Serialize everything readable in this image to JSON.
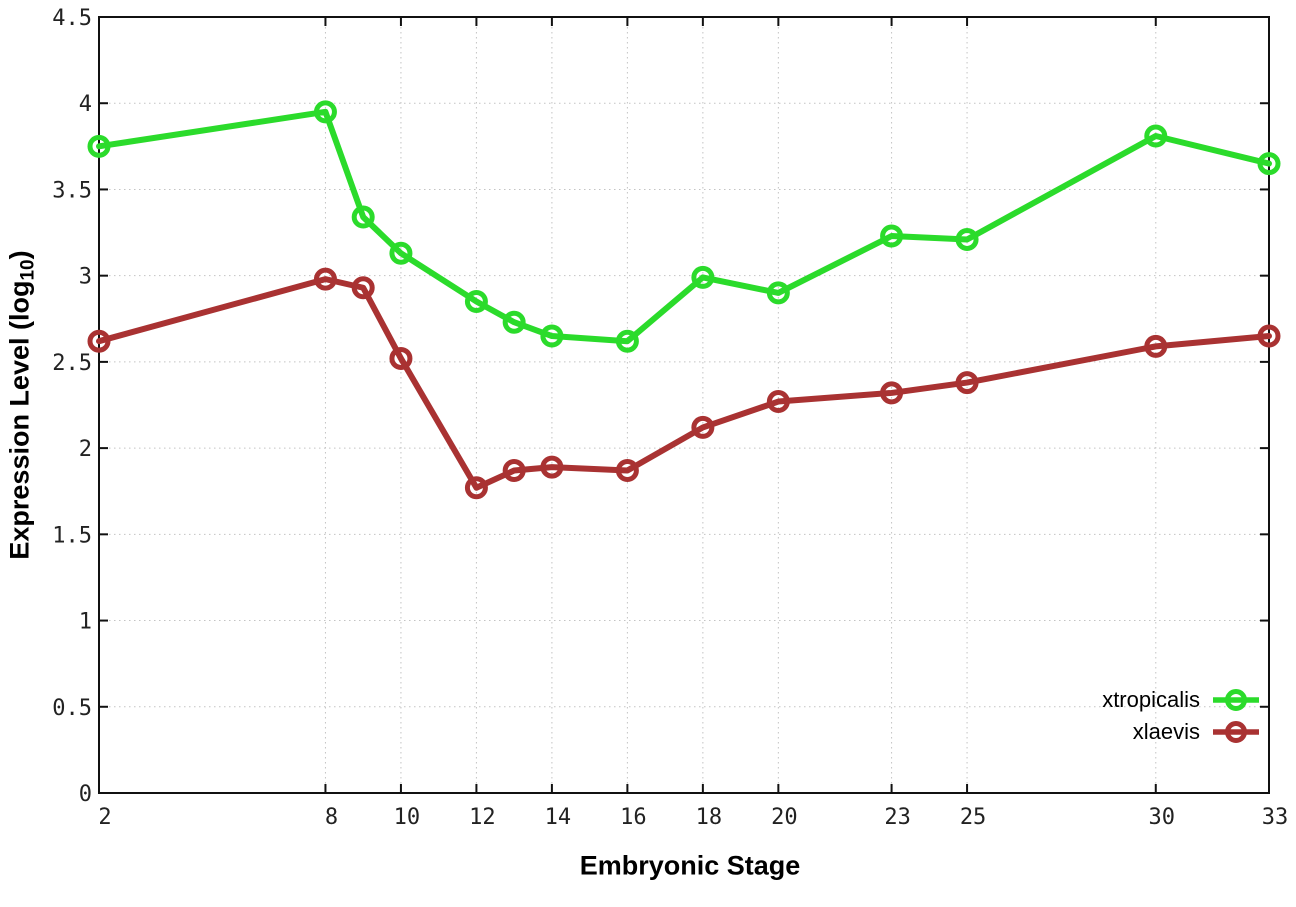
{
  "chart_data": {
    "type": "line",
    "title": "",
    "xlabel": "Embryonic Stage",
    "ylabel": "Expression Level (log10)",
    "ylabel_parts": {
      "main": "Expression Level (log",
      "sub": "10",
      "close": ")"
    },
    "x": [
      2,
      8,
      9,
      10,
      12,
      13,
      14,
      16,
      18,
      20,
      23,
      25,
      30,
      33
    ],
    "xlim": [
      2,
      33
    ],
    "ylim": [
      0,
      4.5
    ],
    "xtick_labels": [
      "2",
      "8",
      "10",
      "12",
      "14",
      "16",
      "18",
      "20",
      "23",
      "25",
      "30",
      "33"
    ],
    "xtick_values": [
      2,
      8,
      10,
      12,
      14,
      16,
      18,
      20,
      23,
      25,
      30,
      33
    ],
    "ytick_labels": [
      "0",
      "0.5",
      "1",
      "1.5",
      "2",
      "2.5",
      "3",
      "3.5",
      "4",
      "4.5"
    ],
    "ytick_values": [
      0,
      0.5,
      1,
      1.5,
      2,
      2.5,
      3,
      3.5,
      4,
      4.5
    ],
    "grid": true,
    "legend_position": "bottom-right-inside",
    "series": [
      {
        "name": "xtropicalis",
        "color": "#2bdb2b",
        "values": [
          3.75,
          3.95,
          3.34,
          3.13,
          2.85,
          2.73,
          2.65,
          2.62,
          2.99,
          2.9,
          3.23,
          3.21,
          3.81,
          3.65
        ]
      },
      {
        "name": "xlaevis",
        "color": "#a93232",
        "values": [
          2.62,
          2.98,
          2.93,
          2.52,
          1.77,
          1.87,
          1.89,
          1.87,
          2.12,
          2.27,
          2.32,
          2.38,
          2.59,
          2.65
        ]
      }
    ],
    "colors": {
      "border": "#111111",
      "grid": "#c3c3c3",
      "tick_text": "#222222"
    }
  }
}
